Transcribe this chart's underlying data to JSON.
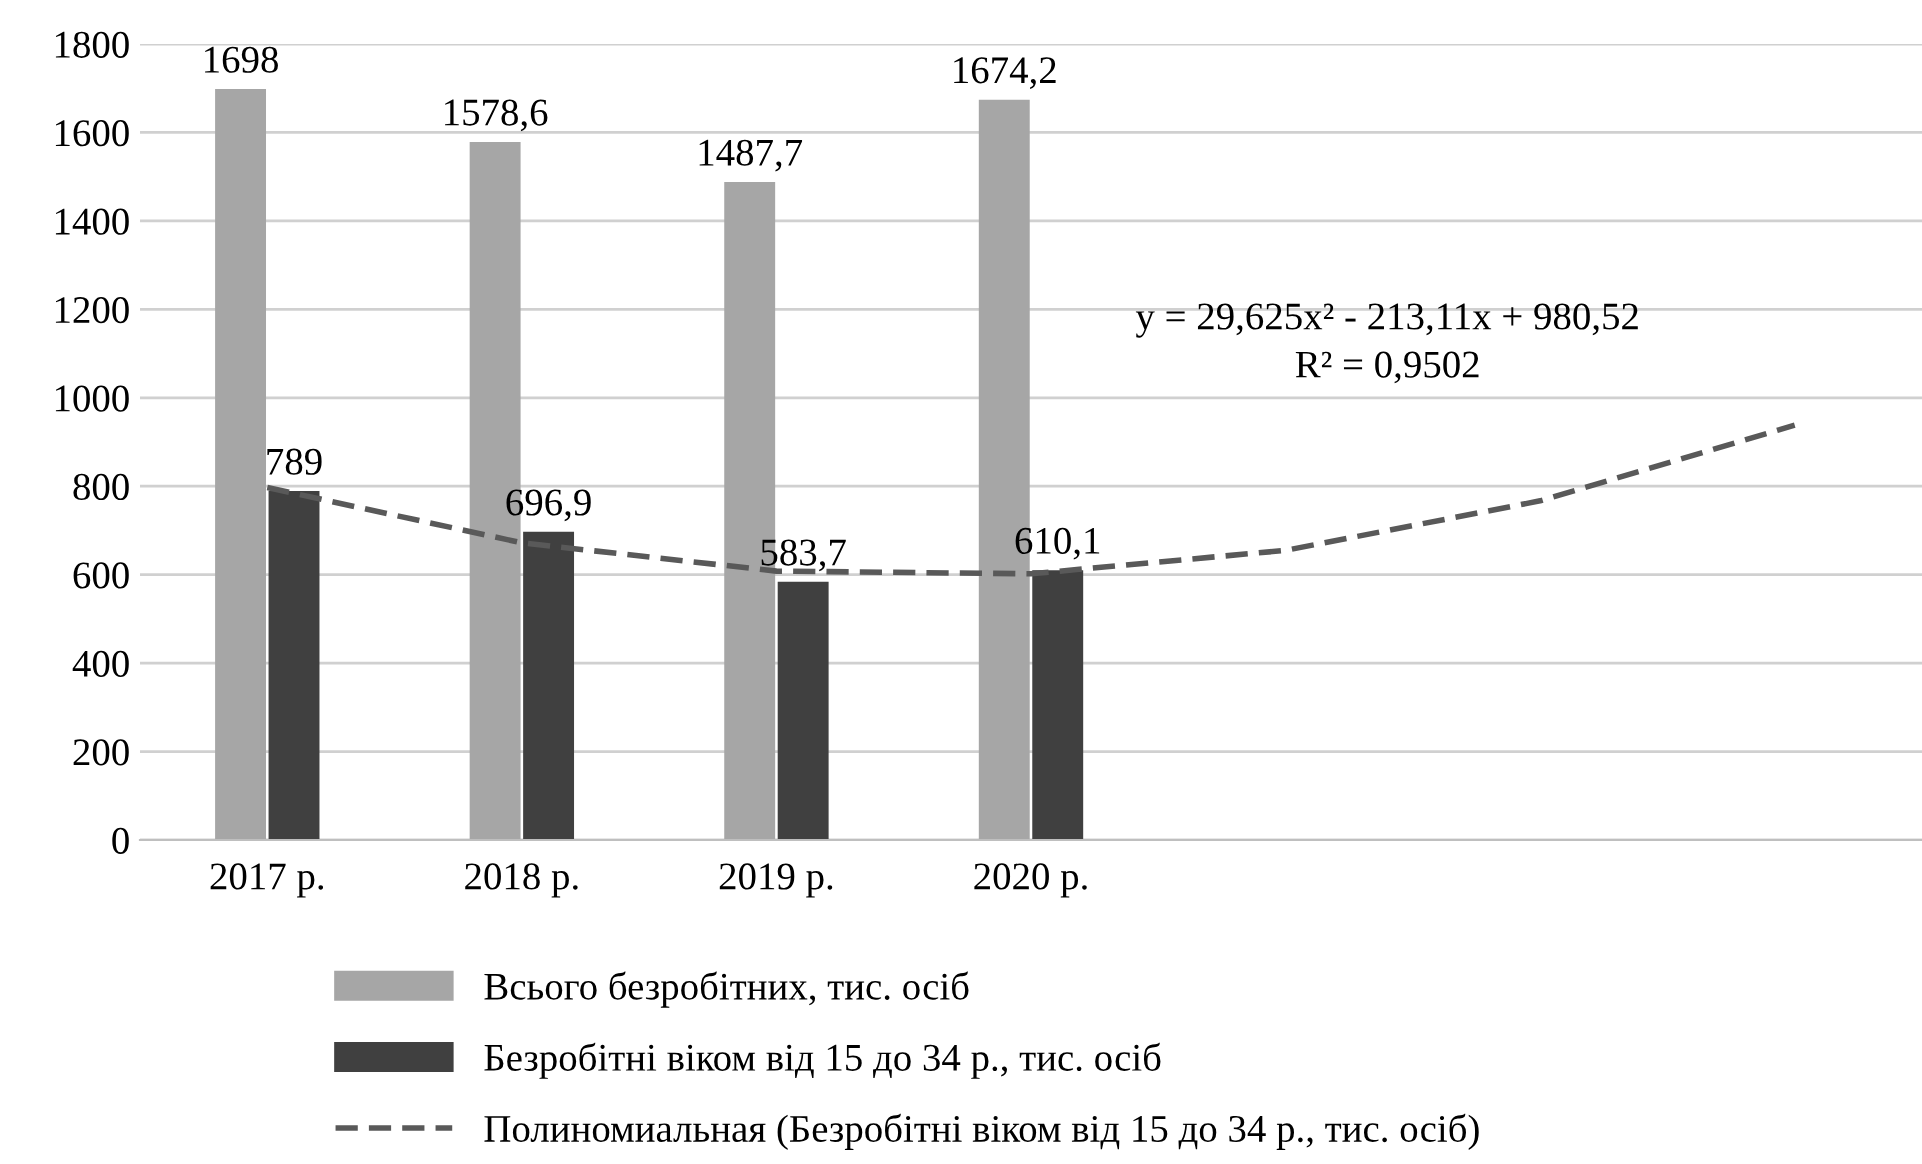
{
  "chart_data": {
    "type": "bar",
    "categories": [
      "2017 р.",
      "2018 р.",
      "2019 р.",
      "2020 р.",
      null,
      null,
      null
    ],
    "series": [
      {
        "name": "Всього безробітних, тис. осіб",
        "color": "#a6a6a6",
        "values": [
          1698,
          1578.6,
          1487.7,
          1674.2,
          null,
          null,
          null
        ],
        "value_labels": [
          "1698",
          "1578,6",
          "1487,7",
          "1674,2",
          null,
          null,
          null
        ]
      },
      {
        "name": "Безробітні віком від 15 до 34 р., тис. осіб",
        "color": "#404040",
        "values": [
          789,
          696.9,
          583.7,
          610.1,
          null,
          null,
          null
        ],
        "value_labels": [
          "789",
          "696,9",
          "583,7",
          "610,1",
          null,
          null,
          null
        ]
      },
      {
        "name": "Полиномиальная (Безробітні віком від 15 до 34 р., тис. осіб)",
        "type": "line",
        "line_style": "dashed",
        "color": "#595959",
        "values": [
          797,
          672,
          608,
          602,
          655,
          767,
          938
        ]
      }
    ],
    "ylim": [
      0,
      1800
    ],
    "yticks": [
      0,
      200,
      400,
      600,
      800,
      1000,
      1200,
      1400,
      1600,
      1800
    ],
    "grid": "y",
    "legend": "bottom",
    "annotations": [
      "y = 29,625x² - 213,11x + 980,52",
      "R² = 0,9502"
    ]
  }
}
